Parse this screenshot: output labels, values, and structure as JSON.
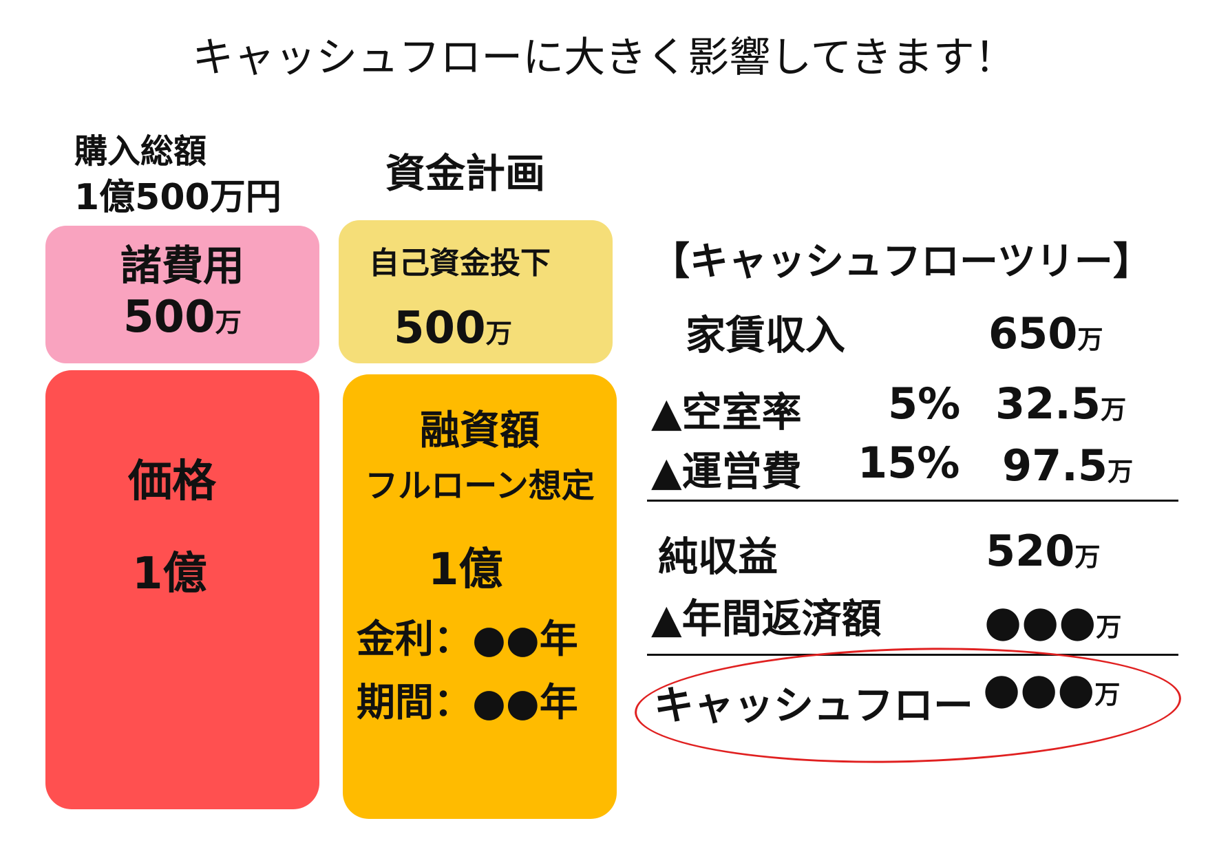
{
  "title": "キャッシュフローに大きく影響してきます！",
  "purchase": {
    "label": "購入総額",
    "amount": "1億500万円"
  },
  "fund_plan_label": "資金計画",
  "left_column": {
    "fees": {
      "label": "諸費用",
      "value": "500",
      "unit": "万",
      "color": "#f9a3bf"
    },
    "price": {
      "label": "価格",
      "value": "1億",
      "color": "#ff5050"
    }
  },
  "middle_column": {
    "equity": {
      "label": "自己資金投下",
      "value": "500",
      "unit": "万",
      "color": "#f5de78"
    },
    "loan": {
      "label": "融資額",
      "sub": "フルローン想定",
      "value": "1億",
      "rate_label": "金利：",
      "rate_value": "●●年",
      "term_label": "期間：",
      "term_value": "●●年",
      "color": "#ffbb00"
    }
  },
  "cashflow_tree": {
    "heading": "【キャッシュフローツリー】",
    "rows": [
      {
        "label": "家賃収入",
        "rate": "",
        "value": "650",
        "unit": "万"
      },
      {
        "label": "▲空室率",
        "rate": "5%",
        "value": "32.5",
        "unit": "万"
      },
      {
        "label": "▲運営費",
        "rate": "15%",
        "value": "97.5",
        "unit": "万"
      },
      {
        "label": "純収益",
        "rate": "",
        "value": "520",
        "unit": "万"
      },
      {
        "label": "▲年間返済額",
        "rate": "",
        "value": "●●●",
        "unit": "万"
      }
    ],
    "result": {
      "label": "キャッシュフロー",
      "value": "●●●",
      "unit": "万"
    },
    "highlight_color": "#e02020"
  }
}
